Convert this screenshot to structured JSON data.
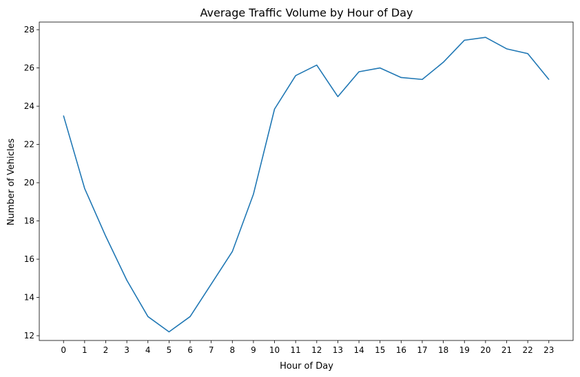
{
  "chart_data": {
    "type": "line",
    "title": "Average Traffic Volume by Hour of Day",
    "xlabel": "Hour of Day",
    "ylabel": "Number of Vehicles",
    "x": [
      0,
      1,
      2,
      3,
      4,
      5,
      6,
      7,
      8,
      9,
      10,
      11,
      12,
      13,
      14,
      15,
      16,
      17,
      18,
      19,
      20,
      21,
      22,
      23
    ],
    "x_ticks": [
      "0",
      "1",
      "2",
      "3",
      "4",
      "5",
      "6",
      "7",
      "8",
      "9",
      "10",
      "11",
      "12",
      "13",
      "14",
      "15",
      "16",
      "17",
      "18",
      "19",
      "20",
      "21",
      "22",
      "23"
    ],
    "y_ticks": [
      "12",
      "14",
      "16",
      "18",
      "20",
      "22",
      "24",
      "26",
      "28"
    ],
    "ylim": [
      11.75,
      28.4
    ],
    "xlim": [
      -1.15,
      24.15
    ],
    "grid": false,
    "series": [
      {
        "color": "#1f77b4",
        "values": [
          23.5,
          19.7,
          17.2,
          14.9,
          13.0,
          12.2,
          13.0,
          14.7,
          16.4,
          19.4,
          23.85,
          25.6,
          26.15,
          24.5,
          25.8,
          26.0,
          25.5,
          25.4,
          26.3,
          27.45,
          27.6,
          27.0,
          26.75,
          25.4
        ]
      }
    ]
  }
}
